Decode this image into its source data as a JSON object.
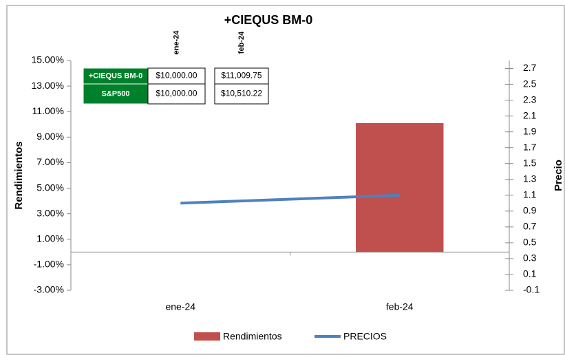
{
  "chart_data": {
    "type": "bar_line",
    "title": "+CIEQUS BM-0",
    "ylabel": "Rendimientos",
    "y2label": "Precio",
    "categories": [
      "ene-24",
      "feb-24"
    ],
    "series": [
      {
        "name": "Rendimientos",
        "type": "bar",
        "color": "#c0504d",
        "values": [
          0,
          10.1
        ]
      },
      {
        "name": "PRECIOS",
        "type": "line",
        "axis": "y2",
        "color": "#4f81bd",
        "values": [
          1.0,
          1.1
        ]
      }
    ],
    "ylim": [
      -3,
      15
    ],
    "yticks": [
      {
        "value": -3,
        "label": "-3.00%"
      },
      {
        "value": -1,
        "label": "-1.00%"
      },
      {
        "value": 1,
        "label": "1.00%"
      },
      {
        "value": 3,
        "label": "3.00%"
      },
      {
        "value": 5,
        "label": "5.00%"
      },
      {
        "value": 7,
        "label": "7.00%"
      },
      {
        "value": 9,
        "label": "9.00%"
      },
      {
        "value": 11,
        "label": "11.00%"
      },
      {
        "value": 13,
        "label": "13.00%"
      },
      {
        "value": 15,
        "label": "15.00%"
      }
    ],
    "y2lim": [
      -0.1,
      2.8
    ],
    "y2ticks": [
      -0.1,
      0.1,
      0.3,
      0.5,
      0.7,
      0.9,
      1.1,
      1.3,
      1.5,
      1.7,
      1.9,
      2.1,
      2.3,
      2.5,
      2.7
    ],
    "legend": "bottom"
  },
  "table": {
    "columns": [
      "ene-24",
      "feb-24"
    ],
    "rows": [
      [
        "+CIEQUS BM-0",
        "$10,000.00",
        "$11,009.75"
      ],
      [
        "S&P500",
        "$10,000.00",
        "$10,510.22"
      ]
    ]
  }
}
